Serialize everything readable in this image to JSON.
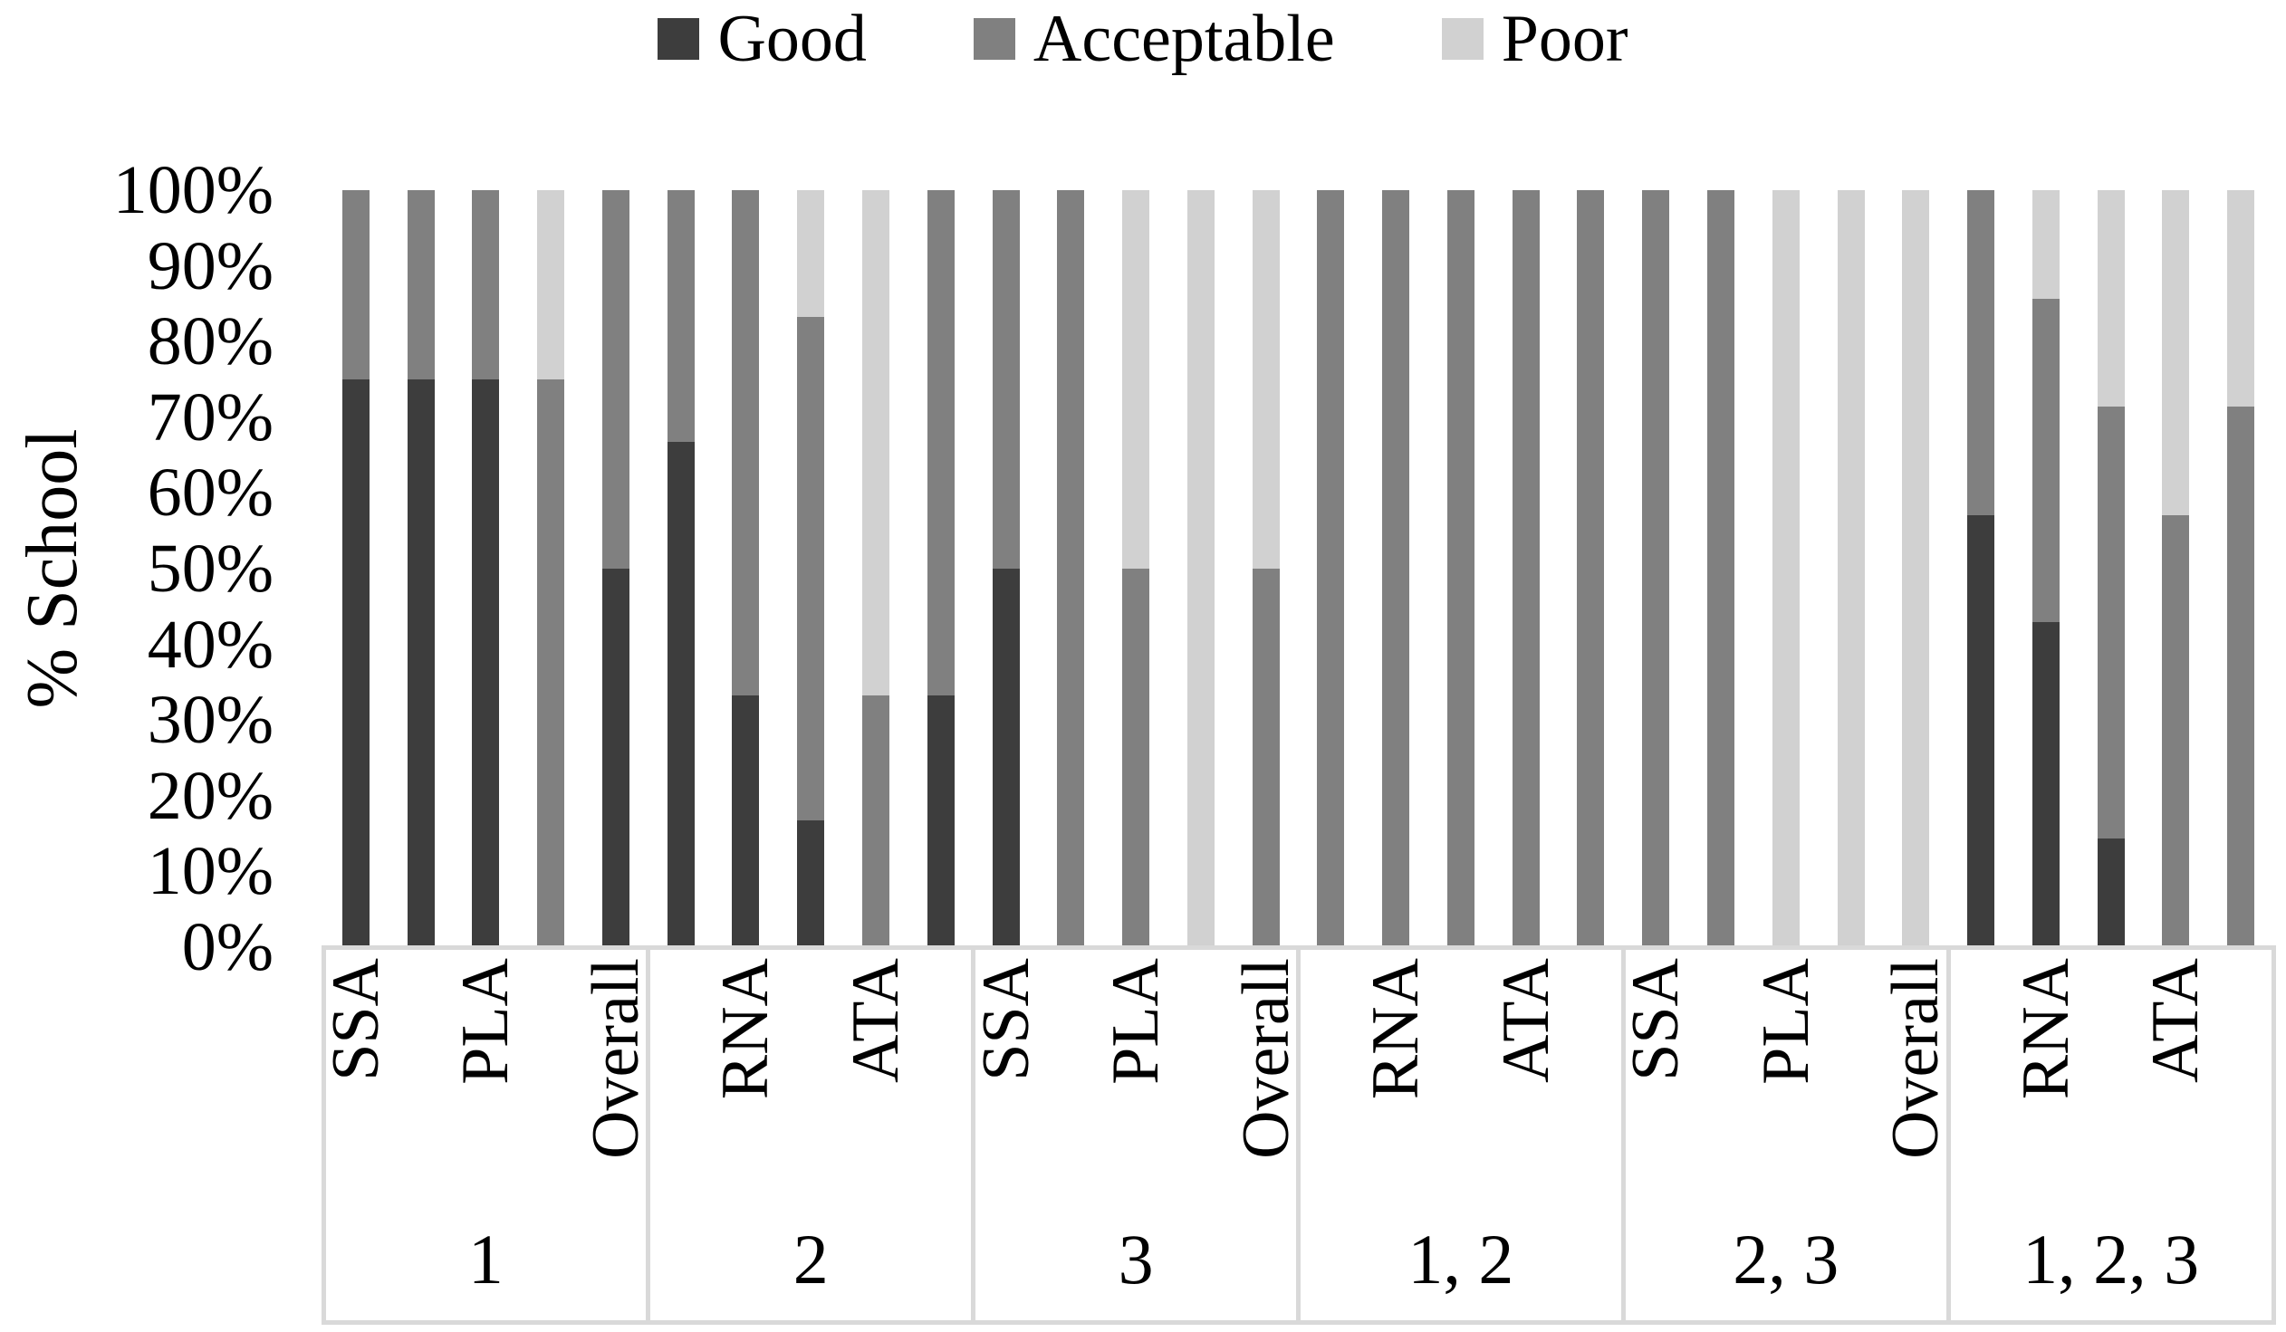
{
  "chart_data": {
    "type": "bar",
    "subtype": "stacked-100-percent-column",
    "title": "",
    "ylabel": "% School",
    "xlabel": "",
    "ylim": [
      0,
      100
    ],
    "grid": false,
    "legend_position": "top",
    "y_ticks": [
      "100%",
      "90%",
      "80%",
      "70%",
      "60%",
      "50%",
      "40%",
      "30%",
      "20%",
      "10%",
      "0%"
    ],
    "series": [
      {
        "name": "Good",
        "color": "#3d3d3d"
      },
      {
        "name": "Acceptable",
        "color": "#808080"
      },
      {
        "name": "Poor",
        "color": "#d1d1d1"
      }
    ],
    "stack_order_bottom_to_top": [
      "Good",
      "Acceptable",
      "Poor"
    ],
    "groups": [
      {
        "label": "1",
        "bars": [
          {
            "name": "SSA",
            "tick_shown": true,
            "Good": 75,
            "Acceptable": 25,
            "Poor": 0
          },
          {
            "name": "RNA",
            "tick_shown": false,
            "Good": 75,
            "Acceptable": 25,
            "Poor": 0
          },
          {
            "name": "PLA",
            "tick_shown": true,
            "Good": 75,
            "Acceptable": 25,
            "Poor": 0
          },
          {
            "name": "ATA",
            "tick_shown": false,
            "Good": 0,
            "Acceptable": 75,
            "Poor": 25
          },
          {
            "name": "Overall",
            "tick_shown": true,
            "Good": 50,
            "Acceptable": 50,
            "Poor": 0
          }
        ]
      },
      {
        "label": "2",
        "bars": [
          {
            "name": "SSA",
            "tick_shown": false,
            "Good": 66.7,
            "Acceptable": 33.3,
            "Poor": 0
          },
          {
            "name": "RNA",
            "tick_shown": true,
            "Good": 33.3,
            "Acceptable": 66.7,
            "Poor": 0
          },
          {
            "name": "PLA",
            "tick_shown": false,
            "Good": 16.7,
            "Acceptable": 66.6,
            "Poor": 16.7
          },
          {
            "name": "ATA",
            "tick_shown": true,
            "Good": 0,
            "Acceptable": 33.3,
            "Poor": 66.7
          },
          {
            "name": "Overall",
            "tick_shown": false,
            "Good": 33.3,
            "Acceptable": 66.7,
            "Poor": 0
          }
        ]
      },
      {
        "label": "3",
        "bars": [
          {
            "name": "SSA",
            "tick_shown": true,
            "Good": 50,
            "Acceptable": 50,
            "Poor": 0
          },
          {
            "name": "RNA",
            "tick_shown": false,
            "Good": 0,
            "Acceptable": 100,
            "Poor": 0
          },
          {
            "name": "PLA",
            "tick_shown": true,
            "Good": 0,
            "Acceptable": 50,
            "Poor": 50
          },
          {
            "name": "ATA",
            "tick_shown": false,
            "Good": 0,
            "Acceptable": 0,
            "Poor": 100
          },
          {
            "name": "Overall",
            "tick_shown": true,
            "Good": 0,
            "Acceptable": 50,
            "Poor": 50
          }
        ]
      },
      {
        "label": "1, 2",
        "bars": [
          {
            "name": "SSA",
            "tick_shown": false,
            "Good": 0,
            "Acceptable": 100,
            "Poor": 0
          },
          {
            "name": "RNA",
            "tick_shown": true,
            "Good": 0,
            "Acceptable": 100,
            "Poor": 0
          },
          {
            "name": "PLA",
            "tick_shown": false,
            "Good": 0,
            "Acceptable": 100,
            "Poor": 0
          },
          {
            "name": "ATA",
            "tick_shown": true,
            "Good": 0,
            "Acceptable": 100,
            "Poor": 0
          },
          {
            "name": "Overall",
            "tick_shown": false,
            "Good": 0,
            "Acceptable": 100,
            "Poor": 0
          }
        ]
      },
      {
        "label": "2, 3",
        "bars": [
          {
            "name": "SSA",
            "tick_shown": true,
            "Good": 0,
            "Acceptable": 100,
            "Poor": 0
          },
          {
            "name": "RNA",
            "tick_shown": false,
            "Good": 0,
            "Acceptable": 100,
            "Poor": 0
          },
          {
            "name": "PLA",
            "tick_shown": true,
            "Good": 0,
            "Acceptable": 0,
            "Poor": 100
          },
          {
            "name": "ATA",
            "tick_shown": false,
            "Good": 0,
            "Acceptable": 0,
            "Poor": 100
          },
          {
            "name": "Overall",
            "tick_shown": true,
            "Good": 0,
            "Acceptable": 0,
            "Poor": 100
          }
        ]
      },
      {
        "label": "1, 2, 3",
        "bars": [
          {
            "name": "SSA",
            "tick_shown": false,
            "Good": 57.1,
            "Acceptable": 42.9,
            "Poor": 0
          },
          {
            "name": "RNA",
            "tick_shown": true,
            "Good": 42.9,
            "Acceptable": 42.8,
            "Poor": 14.3
          },
          {
            "name": "PLA",
            "tick_shown": false,
            "Good": 14.3,
            "Acceptable": 57.1,
            "Poor": 28.6
          },
          {
            "name": "ATA",
            "tick_shown": true,
            "Good": 0,
            "Acceptable": 57.1,
            "Poor": 42.9
          },
          {
            "name": "Overall",
            "tick_shown": false,
            "Good": 0,
            "Acceptable": 71.4,
            "Poor": 28.6
          }
        ]
      }
    ],
    "axis_table_border_color": "#d9d9d9",
    "text_color": "#000000",
    "background_color": "#ffffff"
  }
}
